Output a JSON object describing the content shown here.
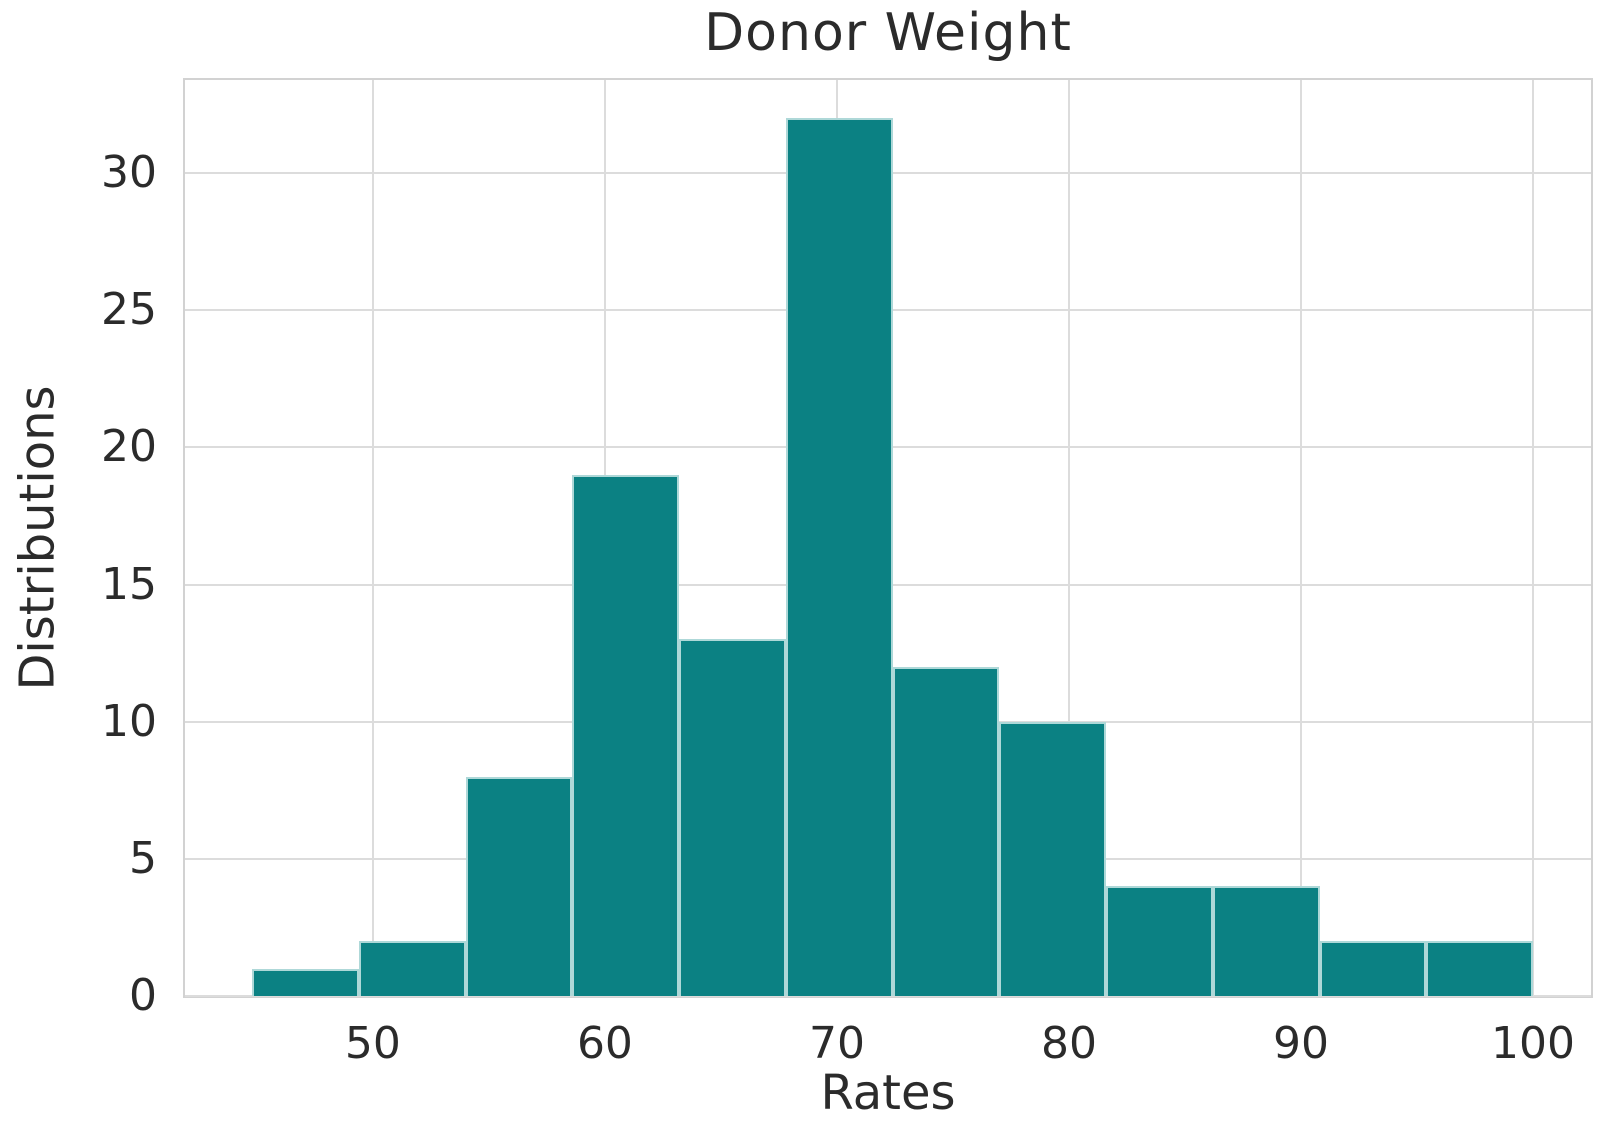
{
  "chart_data": {
    "type": "bar",
    "subtype": "histogram",
    "title": "Donor Weight",
    "xlabel": "Rates",
    "ylabel": "Distributions",
    "bin_edges": [
      44.8,
      49.4,
      54.0,
      58.6,
      63.2,
      67.8,
      72.4,
      77.0,
      81.6,
      86.2,
      90.8,
      95.4,
      100.0
    ],
    "counts": [
      1,
      2,
      8,
      19,
      13,
      32,
      12,
      10,
      4,
      4,
      2,
      2
    ],
    "xlim": [
      41.9,
      102.5
    ],
    "ylim": [
      0,
      33.4
    ],
    "x_ticks": [
      50,
      60,
      70,
      80,
      90,
      100
    ],
    "y_ticks": [
      0,
      5,
      10,
      15,
      20,
      25,
      30
    ],
    "grid": true,
    "legend": "none",
    "colors": {
      "bar_fill": "#0b8183",
      "bar_edge": "#aed8d8",
      "grid_line": "#dcdcdc",
      "spine": "#d2d2d2",
      "text": "#2b2b2b"
    }
  }
}
